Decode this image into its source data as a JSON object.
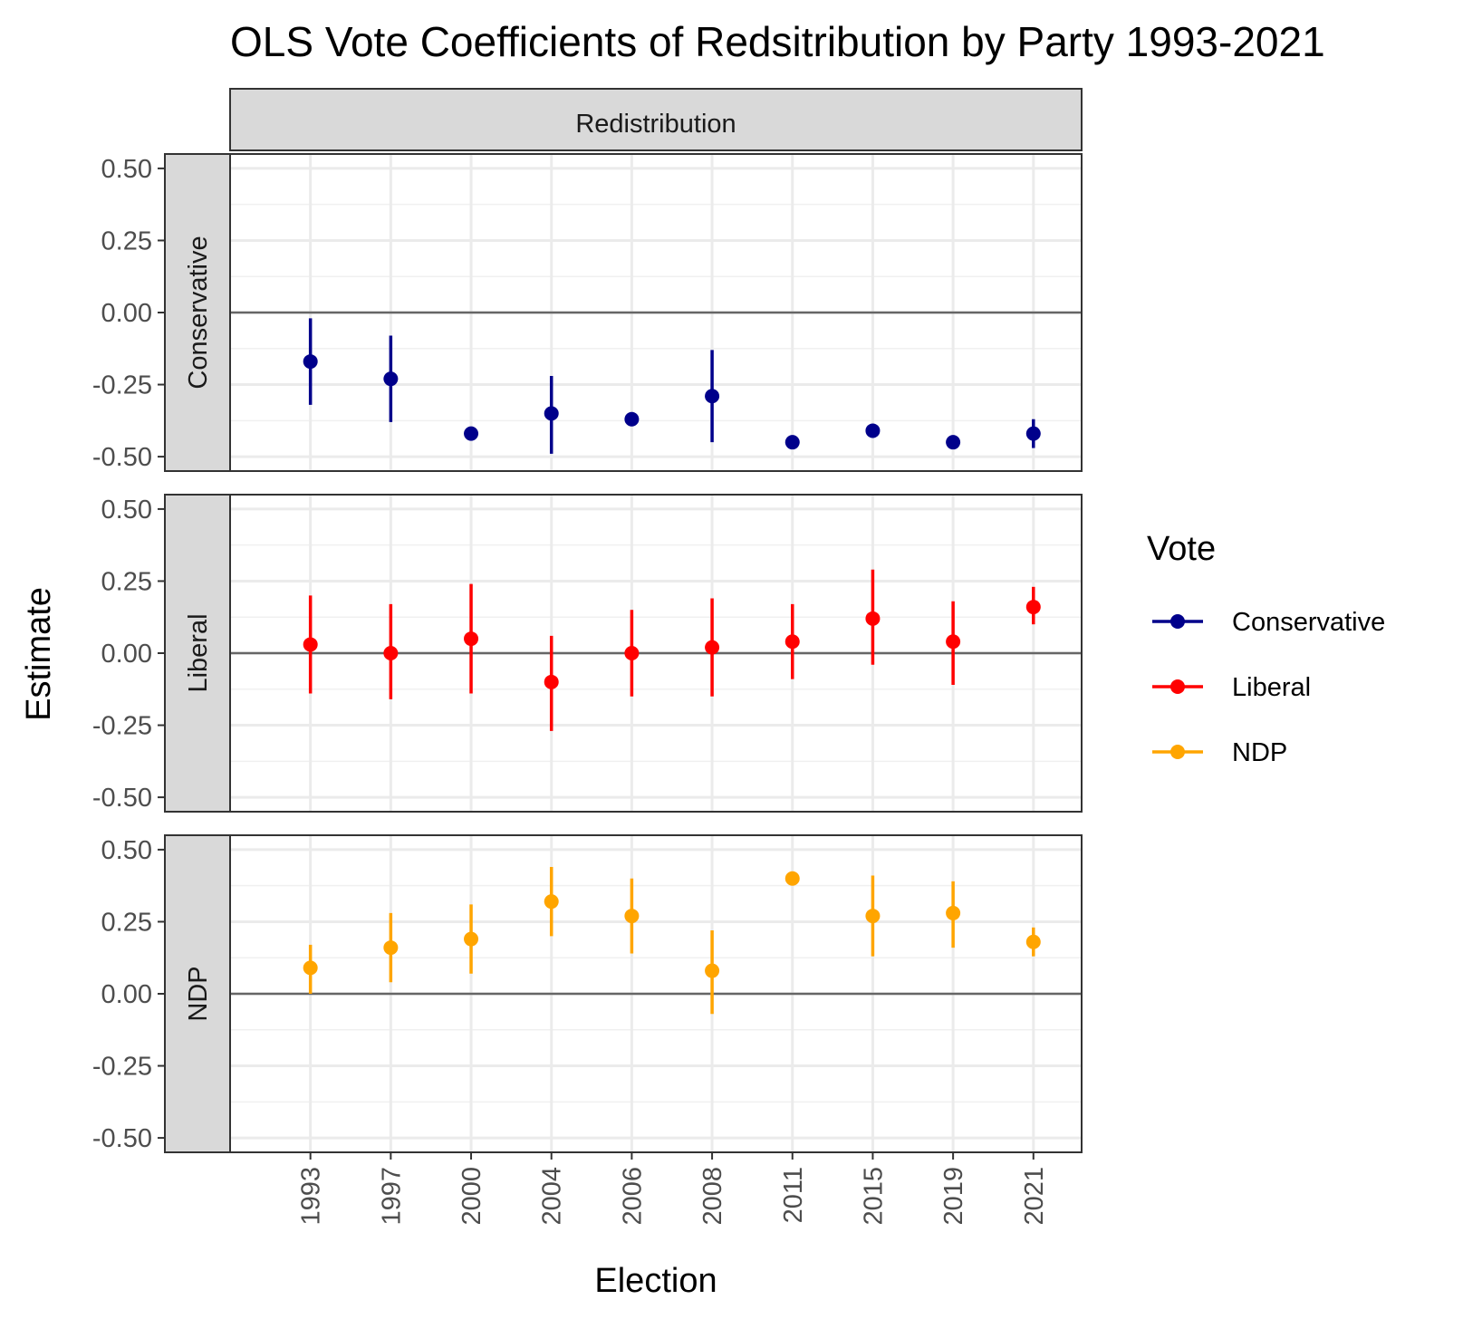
{
  "chart_data": {
    "type": "scatter",
    "title": "OLS Vote Coefficients of Redsitribution by Party 1993-2021",
    "xlabel": "Election",
    "ylabel": "Estimate",
    "column_strip": "Redistribution",
    "categories": [
      "1993",
      "1997",
      "2000",
      "2004",
      "2006",
      "2008",
      "2011",
      "2015",
      "2019",
      "2021"
    ],
    "ylim": [
      -0.55,
      0.55
    ],
    "yticks": [
      0.5,
      0.25,
      0.0,
      -0.25,
      -0.5
    ],
    "ytick_labels": [
      "0.50",
      "0.25",
      "0.00",
      "-0.25",
      "-0.50"
    ],
    "grid": true,
    "reference_line": 0,
    "legend": {
      "title": "Vote",
      "position": "right",
      "entries": [
        "Conservative",
        "Liberal",
        "NDP"
      ]
    },
    "panels": [
      {
        "name": "Conservative",
        "color": "#00008B",
        "estimates": [
          -0.17,
          -0.23,
          -0.42,
          -0.35,
          -0.37,
          -0.29,
          -0.45,
          -0.41,
          -0.45,
          -0.42
        ],
        "lower": [
          -0.32,
          -0.38,
          -0.42,
          -0.49,
          -0.37,
          -0.45,
          -0.45,
          -0.41,
          -0.45,
          -0.47
        ],
        "upper": [
          -0.02,
          -0.08,
          -0.42,
          -0.22,
          -0.37,
          -0.13,
          -0.45,
          -0.41,
          -0.45,
          -0.37
        ]
      },
      {
        "name": "Liberal",
        "color": "#FF0000",
        "estimates": [
          0.03,
          0.0,
          0.05,
          -0.1,
          0.0,
          0.02,
          0.04,
          0.12,
          0.04,
          0.16
        ],
        "lower": [
          -0.14,
          -0.16,
          -0.14,
          -0.27,
          -0.15,
          -0.15,
          -0.09,
          -0.04,
          -0.11,
          0.1
        ],
        "upper": [
          0.2,
          0.17,
          0.24,
          0.06,
          0.15,
          0.19,
          0.17,
          0.29,
          0.18,
          0.23
        ]
      },
      {
        "name": "NDP",
        "color": "#FFA500",
        "estimates": [
          0.09,
          0.16,
          0.19,
          0.32,
          0.27,
          0.08,
          0.4,
          0.27,
          0.28,
          0.18
        ],
        "lower": [
          0.0,
          0.04,
          0.07,
          0.2,
          0.14,
          -0.07,
          0.4,
          0.13,
          0.16,
          0.13
        ],
        "upper": [
          0.17,
          0.28,
          0.31,
          0.44,
          0.4,
          0.22,
          0.4,
          0.41,
          0.39,
          0.23
        ]
      }
    ]
  }
}
